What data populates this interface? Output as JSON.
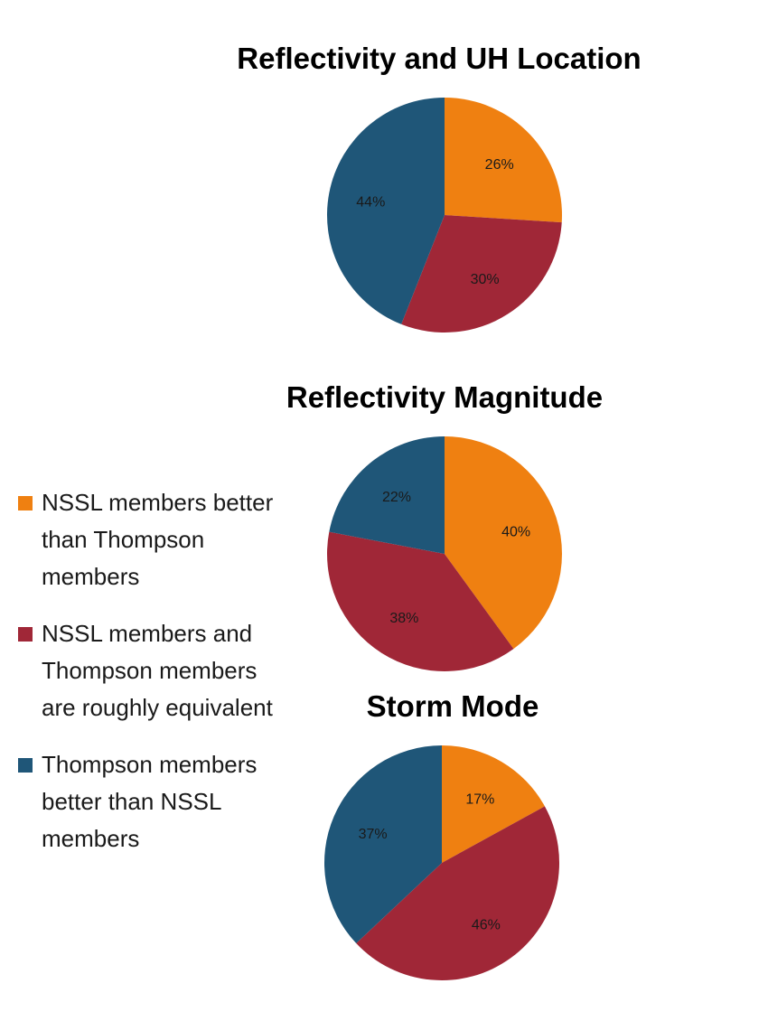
{
  "colors": {
    "orange": "#EF8011",
    "red": "#A02737",
    "blue": "#1F5678"
  },
  "legend": [
    {
      "label": "NSSL members better than Thompson members",
      "color": "#EF8011"
    },
    {
      "label": "NSSL members and Thompson members are roughly equivalent",
      "color": "#A02737"
    },
    {
      "label": "Thompson members better than NSSL members",
      "color": "#1F5678"
    }
  ],
  "chart_data": [
    {
      "type": "pie",
      "title": "Reflectivity and UH Location",
      "categories": [
        "NSSL members better than Thompson members",
        "NSSL members and Thompson members are roughly equivalent",
        "Thompson members better than NSSL members"
      ],
      "values": [
        26,
        30,
        44
      ],
      "labels": [
        "26%",
        "30%",
        "44%"
      ],
      "colors": [
        "#EF8011",
        "#A02737",
        "#1F5678"
      ]
    },
    {
      "type": "pie",
      "title": "Reflectivity Magnitude",
      "categories": [
        "NSSL members better than Thompson members",
        "NSSL members and Thompson members are roughly equivalent",
        "Thompson members better than NSSL members"
      ],
      "values": [
        40,
        38,
        22
      ],
      "labels": [
        "40%",
        "38%",
        "22%"
      ],
      "colors": [
        "#EF8011",
        "#A02737",
        "#1F5678"
      ]
    },
    {
      "type": "pie",
      "title": "Storm Mode",
      "categories": [
        "NSSL members better than Thompson members",
        "NSSL members and Thompson members are roughly equivalent",
        "Thompson members better than NSSL members"
      ],
      "values": [
        17,
        46,
        37
      ],
      "labels": [
        "17%",
        "46%",
        "37%"
      ],
      "colors": [
        "#EF8011",
        "#A02737",
        "#1F5678"
      ]
    }
  ]
}
